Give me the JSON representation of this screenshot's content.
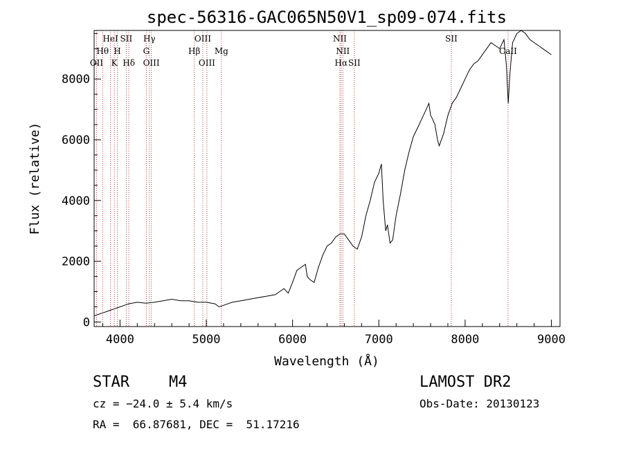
{
  "chart_data": {
    "type": "line",
    "title": "spec-56316-GAC065N50V1_sp09-074.fits",
    "xlabel": "Wavelength (Å)",
    "ylabel": "Flux (relative)",
    "xlim": [
      3700,
      9100
    ],
    "ylim": [
      -150,
      9600
    ],
    "x_ticks": [
      4000,
      5000,
      6000,
      7000,
      8000,
      9000
    ],
    "y_ticks": [
      0,
      2000,
      4000,
      6000,
      8000
    ],
    "grid": false,
    "series": [
      {
        "color": "#000000",
        "x": [
          3700,
          3750,
          3800,
          3850,
          3900,
          3950,
          4000,
          4050,
          4100,
          4200,
          4300,
          4400,
          4500,
          4600,
          4700,
          4800,
          4900,
          5000,
          5100,
          5150,
          5200,
          5300,
          5400,
          5500,
          5600,
          5700,
          5800,
          5850,
          5900,
          5950,
          6000,
          6050,
          6100,
          6150,
          6170,
          6200,
          6250,
          6300,
          6350,
          6400,
          6450,
          6500,
          6550,
          6600,
          6650,
          6700,
          6750,
          6800,
          6850,
          6900,
          6950,
          7000,
          7030,
          7050,
          7080,
          7100,
          7130,
          7160,
          7200,
          7250,
          7300,
          7350,
          7400,
          7450,
          7500,
          7550,
          7580,
          7600,
          7620,
          7650,
          7680,
          7700,
          7750,
          7800,
          7850,
          7900,
          7950,
          8000,
          8050,
          8100,
          8150,
          8200,
          8250,
          8300,
          8350,
          8400,
          8450,
          8480,
          8500,
          8520,
          8550,
          8600,
          8650,
          8700,
          8750,
          8800,
          8850,
          8900,
          8950,
          9000
        ],
        "y": [
          200,
          250,
          300,
          350,
          400,
          450,
          500,
          550,
          600,
          650,
          620,
          650,
          700,
          750,
          700,
          700,
          650,
          650,
          600,
          500,
          550,
          650,
          700,
          750,
          800,
          850,
          900,
          1000,
          1100,
          950,
          1300,
          1700,
          1800,
          1900,
          1500,
          1400,
          1300,
          1800,
          2200,
          2500,
          2600,
          2800,
          2900,
          2900,
          2700,
          2500,
          2400,
          2800,
          3500,
          4000,
          4600,
          4900,
          5200,
          4000,
          3000,
          3200,
          2600,
          2700,
          3500,
          4200,
          5000,
          5600,
          6100,
          6400,
          6700,
          7000,
          7200,
          6800,
          6700,
          6500,
          6000,
          5800,
          6200,
          6800,
          7200,
          7400,
          7700,
          8000,
          8300,
          8500,
          8600,
          8800,
          9000,
          9200,
          9100,
          9000,
          9300,
          8400,
          7200,
          8200,
          9200,
          9500,
          9700,
          9500,
          9300,
          9200,
          9100,
          9000,
          8900,
          8800
        ]
      }
    ],
    "spectral_lines": [
      {
        "label": "OII",
        "x": 3728,
        "row": 3
      },
      {
        "label": "Hθ",
        "x": 3798,
        "row": 2
      },
      {
        "label": "HeI",
        "x": 3889,
        "row": 1
      },
      {
        "label": "K",
        "x": 3934,
        "row": 3
      },
      {
        "label": "H",
        "x": 3969,
        "row": 2
      },
      {
        "label": "SII",
        "x": 4072,
        "row": 1
      },
      {
        "label": "Hδ",
        "x": 4102,
        "row": 3
      },
      {
        "label": "Hγ",
        "x": 4340,
        "row": 1
      },
      {
        "label": "G",
        "x": 4305,
        "row": 2
      },
      {
        "label": "OIII",
        "x": 4363,
        "row": 3
      },
      {
        "label": "Hβ",
        "x": 4861,
        "row": 2
      },
      {
        "label": "OIII",
        "x": 4959,
        "row": 1
      },
      {
        "label": "OIII",
        "x": 5007,
        "row": 3
      },
      {
        "label": "Mg",
        "x": 5175,
        "row": 2
      },
      {
        "label": "NII",
        "x": 6548,
        "row": 1
      },
      {
        "label": "NII",
        "x": 6583,
        "row": 2
      },
      {
        "label": "Hα",
        "x": 6563,
        "row": 3
      },
      {
        "label": "SII",
        "x": 6716,
        "row": 3
      },
      {
        "label": "SII",
        "x": 7840,
        "row": 1
      },
      {
        "label": "CaII",
        "x": 8498,
        "row": 2
      }
    ]
  },
  "info": {
    "object_class": "STAR",
    "subclass": "M4",
    "survey": "LAMOST DR2",
    "cz": "cz = −24.0 ± 5.4 km/s",
    "obs_date": "Obs-Date: 20130123",
    "coords": "RA =  66.87681, DEC =  51.17216"
  }
}
